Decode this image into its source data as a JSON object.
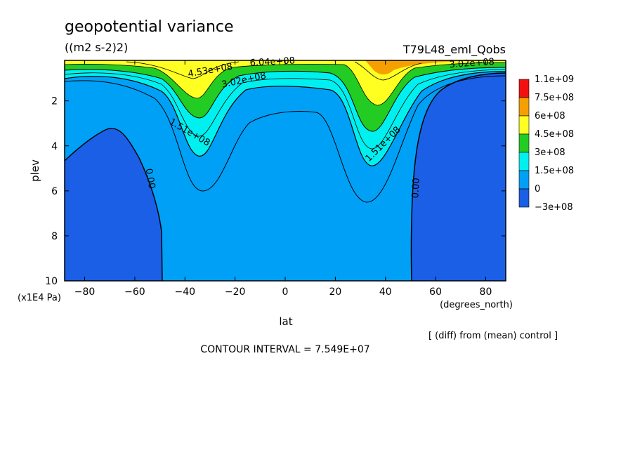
{
  "title": "geopotential variance",
  "units": "((m2 s-2)2)",
  "experiment": "T79L48_eml_Qobs",
  "note": "[ (diff) from (mean) control ]",
  "contour_interval": "CONTOUR INTERVAL = 7.549E+07",
  "colors": {
    "neg": "#1a5fe6",
    "c0": "#00a0f6",
    "c1": "#00f0f0",
    "c2": "#22cc22",
    "c3": "#ffff22",
    "c4": "#f5a000",
    "c5": "#f51010"
  },
  "chart_data": {
    "type": "contour",
    "title": "geopotential variance",
    "units": "((m2 s-2)2)",
    "xlabel": "lat",
    "xunits": "(degrees_north)",
    "ylabel": "plev",
    "yunits": "(x1E4 Pa)",
    "xlim": [
      -88,
      88
    ],
    "ylim": [
      10,
      0.2
    ],
    "x_ticks": [
      -80,
      -60,
      -40,
      -20,
      0,
      20,
      40,
      60,
      80
    ],
    "y_ticks": [
      2,
      4,
      6,
      8,
      10
    ],
    "colorbar": {
      "labels": [
        "1.1e+09",
        "7.5e+08",
        "6e+08",
        "4.5e+08",
        "3e+08",
        "1.5e+08",
        "0",
        "−3e+08"
      ],
      "levels": [
        -300000000,
        0,
        150000000,
        300000000,
        450000000,
        600000000,
        750000000,
        1100000000
      ]
    },
    "contour_labels": [
      {
        "text": "6.04e+08",
        "lat": 0,
        "plev": 0.2
      },
      {
        "text": "4.53e+08",
        "lat": -38,
        "plev": 0.6
      },
      {
        "text": "3.02e+08",
        "lat": -18,
        "plev": 0.9
      },
      {
        "text": "1.51e+08",
        "lat": -42,
        "plev": 3.1
      },
      {
        "text": "1.51e+08",
        "lat": 42,
        "plev": 3.9
      },
      {
        "text": "0.00",
        "lat": -66,
        "plev": 5.7
      },
      {
        "text": "0.00",
        "lat": 54,
        "plev": 5.7
      },
      {
        "text": "3.02e+08",
        "lat": 75,
        "plev": 0.3
      }
    ]
  }
}
